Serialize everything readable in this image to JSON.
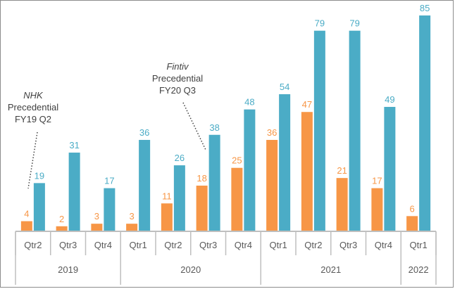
{
  "chart_data": {
    "type": "bar",
    "title": "",
    "xlabel": "",
    "ylabel": "",
    "ylim": [
      0,
      90
    ],
    "grid": false,
    "legend": "none",
    "categories": [
      "Qtr2",
      "Qtr3",
      "Qtr4",
      "Qtr1",
      "Qtr2",
      "Qtr3",
      "Qtr4",
      "Qtr1",
      "Qtr2",
      "Qtr3",
      "Qtr4",
      "Qtr1"
    ],
    "years": [
      {
        "label": "2019",
        "count": 3
      },
      {
        "label": "2020",
        "count": 4
      },
      {
        "label": "2021",
        "count": 4
      },
      {
        "label": "2022",
        "count": 1
      }
    ],
    "series": [
      {
        "values": [
          4,
          2,
          3,
          3,
          11,
          18,
          25,
          36,
          47,
          21,
          17,
          6
        ],
        "color": "#F79646"
      },
      {
        "values": [
          19,
          31,
          17,
          36,
          26,
          38,
          48,
          54,
          79,
          79,
          49,
          85
        ],
        "color": "#4BACC6"
      }
    ],
    "annotations": [
      {
        "lines": [
          "NHK",
          "Precedential",
          "FY19 Q2"
        ],
        "italic_first": true,
        "category_index": 0
      },
      {
        "lines": [
          "Fintiv",
          "Precedential",
          "FY20 Q3"
        ],
        "italic_first": true,
        "category_index": 5
      }
    ]
  }
}
